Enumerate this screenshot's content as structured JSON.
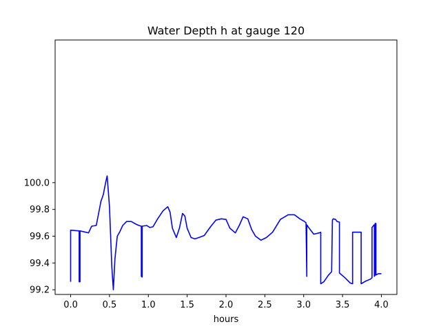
{
  "chart_data": {
    "type": "line",
    "title": "Water Depth h at gauge 120",
    "xlabel": "hours",
    "ylabel": "",
    "xlim": [
      -0.2,
      4.2
    ],
    "ylim": [
      99.165,
      101.065
    ],
    "xticks": [
      0.0,
      0.5,
      1.0,
      1.5,
      2.0,
      2.5,
      3.0,
      3.5,
      4.0
    ],
    "xtick_labels": [
      "0.0",
      "0.5",
      "1.0",
      "1.5",
      "2.0",
      "2.5",
      "3.0",
      "3.5",
      "4.0"
    ],
    "yticks": [
      99.2,
      99.4,
      99.6,
      99.8,
      100.0
    ],
    "ytick_labels": [
      "99.2",
      "99.4",
      "99.6",
      "99.8",
      "100.0"
    ],
    "grid": false,
    "series": [
      {
        "color": "#0000ff",
        "x": [
          0.0,
          0.0,
          0.11,
          0.11,
          0.12,
          0.12,
          0.23,
          0.27,
          0.33,
          0.36,
          0.39,
          0.42,
          0.45,
          0.47,
          0.5,
          0.53,
          0.55,
          0.57,
          0.6,
          0.63,
          0.67,
          0.72,
          0.78,
          0.84,
          0.88,
          0.91,
          0.91,
          0.92,
          0.92,
          0.98,
          1.02,
          1.06,
          1.12,
          1.19,
          1.25,
          1.28,
          1.31,
          1.36,
          1.4,
          1.44,
          1.47,
          1.5,
          1.55,
          1.6,
          1.65,
          1.72,
          1.8,
          1.87,
          1.94,
          2.0,
          2.05,
          2.12,
          2.17,
          2.22,
          2.28,
          2.33,
          2.38,
          2.45,
          2.52,
          2.6,
          2.7,
          2.8,
          2.88,
          2.95,
          3.01,
          3.03,
          3.04,
          3.04,
          3.04,
          3.07,
          3.13,
          3.2,
          3.22,
          3.22,
          3.26,
          3.32,
          3.36,
          3.37,
          3.38,
          3.41,
          3.43,
          3.46,
          3.46,
          3.53,
          3.6,
          3.63,
          3.63,
          3.73,
          3.74,
          3.74,
          3.8,
          3.86,
          3.88,
          3.88,
          3.9,
          3.91,
          3.91,
          3.92,
          3.92,
          3.93,
          3.93,
          3.96,
          4.0
        ],
        "values": [
          99.26,
          99.645,
          99.64,
          99.26,
          99.26,
          99.64,
          99.625,
          99.675,
          99.68,
          99.77,
          99.86,
          99.91,
          100.0,
          100.05,
          99.82,
          99.37,
          99.2,
          99.43,
          99.6,
          99.63,
          99.68,
          99.71,
          99.71,
          99.69,
          99.68,
          99.675,
          99.3,
          99.295,
          99.675,
          99.68,
          99.665,
          99.67,
          99.73,
          99.79,
          99.82,
          99.78,
          99.66,
          99.59,
          99.66,
          99.77,
          99.75,
          99.66,
          99.59,
          99.58,
          99.59,
          99.605,
          99.67,
          99.72,
          99.73,
          99.725,
          99.66,
          99.625,
          99.68,
          99.745,
          99.73,
          99.65,
          99.6,
          99.57,
          99.59,
          99.63,
          99.725,
          99.76,
          99.76,
          99.73,
          99.71,
          99.7,
          99.32,
          99.3,
          99.685,
          99.66,
          99.615,
          99.625,
          99.63,
          99.245,
          99.26,
          99.31,
          99.335,
          99.72,
          99.73,
          99.725,
          99.71,
          99.705,
          99.325,
          99.29,
          99.25,
          99.245,
          99.63,
          99.63,
          99.63,
          99.245,
          99.265,
          99.28,
          99.29,
          99.665,
          99.68,
          99.685,
          99.3,
          99.31,
          99.695,
          99.695,
          99.31,
          99.32,
          99.32
        ]
      }
    ]
  }
}
